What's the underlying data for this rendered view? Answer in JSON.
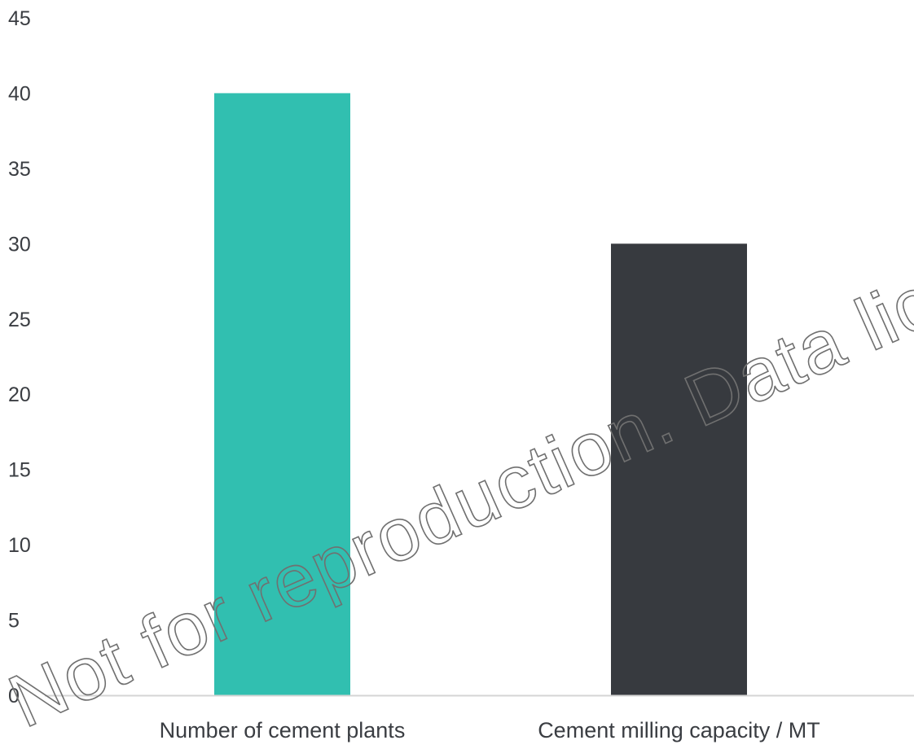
{
  "chart_data": {
    "type": "bar",
    "categories": [
      "Number of cement plants",
      "Cement milling capacity / MT"
    ],
    "values": [
      40,
      30
    ],
    "colors": [
      "#31bfb0",
      "#373a3f"
    ],
    "title": "",
    "xlabel": "",
    "ylabel": "",
    "ylim": [
      0,
      45
    ],
    "y_ticks": [
      0,
      5,
      10,
      15,
      20,
      25,
      30,
      35,
      40,
      45
    ],
    "y_tick_labels": [
      "0",
      "5",
      "10",
      "15",
      "20",
      "25",
      "30",
      "35",
      "40",
      "45"
    ],
    "grid": false,
    "legend": "none",
    "axis_color": "#d4d4d4"
  },
  "watermark": {
    "text": "Not for reproduction. Data license required",
    "color": "#707070"
  }
}
